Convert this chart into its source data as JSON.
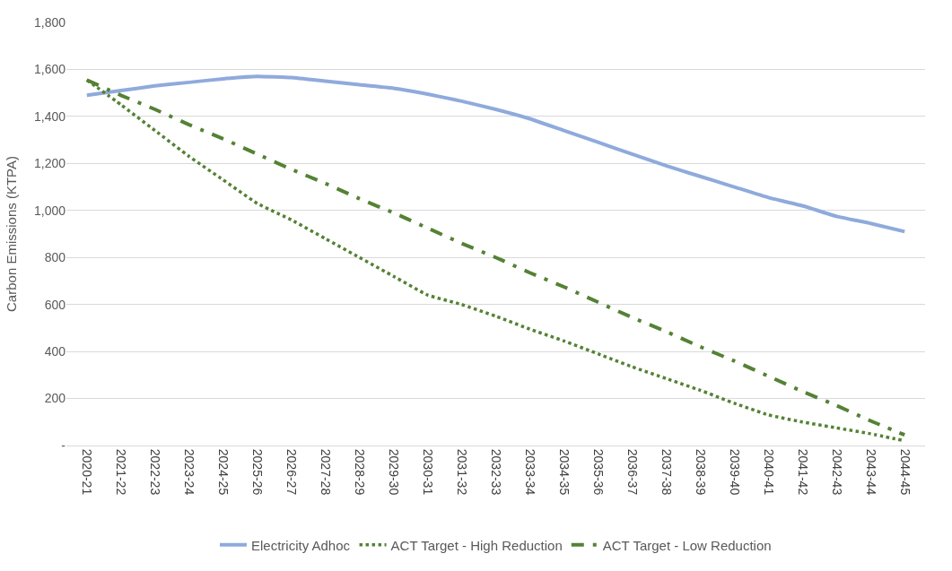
{
  "chart_data": {
    "type": "line",
    "ylabel": "Carbon Emissions (KTPA)",
    "categories": [
      "2020-21",
      "2021-22",
      "2022-23",
      "2023-24",
      "2024-25",
      "2025-26",
      "2026-27",
      "2027-28",
      "2028-29",
      "2029-30",
      "2030-31",
      "2031-32",
      "2032-33",
      "2033-34",
      "2034-35",
      "2035-36",
      "2036-37",
      "2037-38",
      "2038-39",
      "2039-40",
      "2040-41",
      "2041-42",
      "2042-43",
      "2043-44",
      "2044-45"
    ],
    "series": [
      {
        "name": "Electricity Adhoc",
        "color": "#8faadc",
        "line_style": "solid",
        "values": [
          1490,
          1510,
          1530,
          1545,
          1560,
          1570,
          1565,
          1550,
          1535,
          1520,
          1495,
          1465,
          1430,
          1390,
          1340,
          1290,
          1240,
          1190,
          1145,
          1100,
          1055,
          1020,
          975,
          945,
          910
        ]
      },
      {
        "name": "ACT Target - High Reduction",
        "color": "#548235",
        "line_style": "dotted",
        "values": [
          1555,
          1450,
          1340,
          1230,
          1130,
          1030,
          960,
          880,
          800,
          720,
          640,
          600,
          550,
          495,
          445,
          390,
          335,
          285,
          235,
          180,
          130,
          100,
          75,
          50,
          20
        ]
      },
      {
        "name": "ACT Target - Low Reduction",
        "color": "#548235",
        "line_style": "dashed",
        "values": [
          1555,
          1490,
          1430,
          1365,
          1305,
          1240,
          1175,
          1115,
          1050,
          990,
          925,
          860,
          800,
          735,
          675,
          610,
          545,
          485,
          420,
          360,
          295,
          230,
          170,
          105,
          45
        ]
      }
    ],
    "ylim": [
      0,
      1800
    ],
    "yticks": [
      {
        "value": 0,
        "label": "-"
      },
      {
        "value": 200,
        "label": "200"
      },
      {
        "value": 400,
        "label": "400"
      },
      {
        "value": 600,
        "label": "600"
      },
      {
        "value": 800,
        "label": "800"
      },
      {
        "value": 1000,
        "label": "1,000"
      },
      {
        "value": 1200,
        "label": "1,200"
      },
      {
        "value": 1400,
        "label": "1,400"
      },
      {
        "value": 1600,
        "label": "1,600"
      },
      {
        "value": 1800,
        "label": "1,800"
      }
    ],
    "grid": "y",
    "legend": "bottom"
  }
}
